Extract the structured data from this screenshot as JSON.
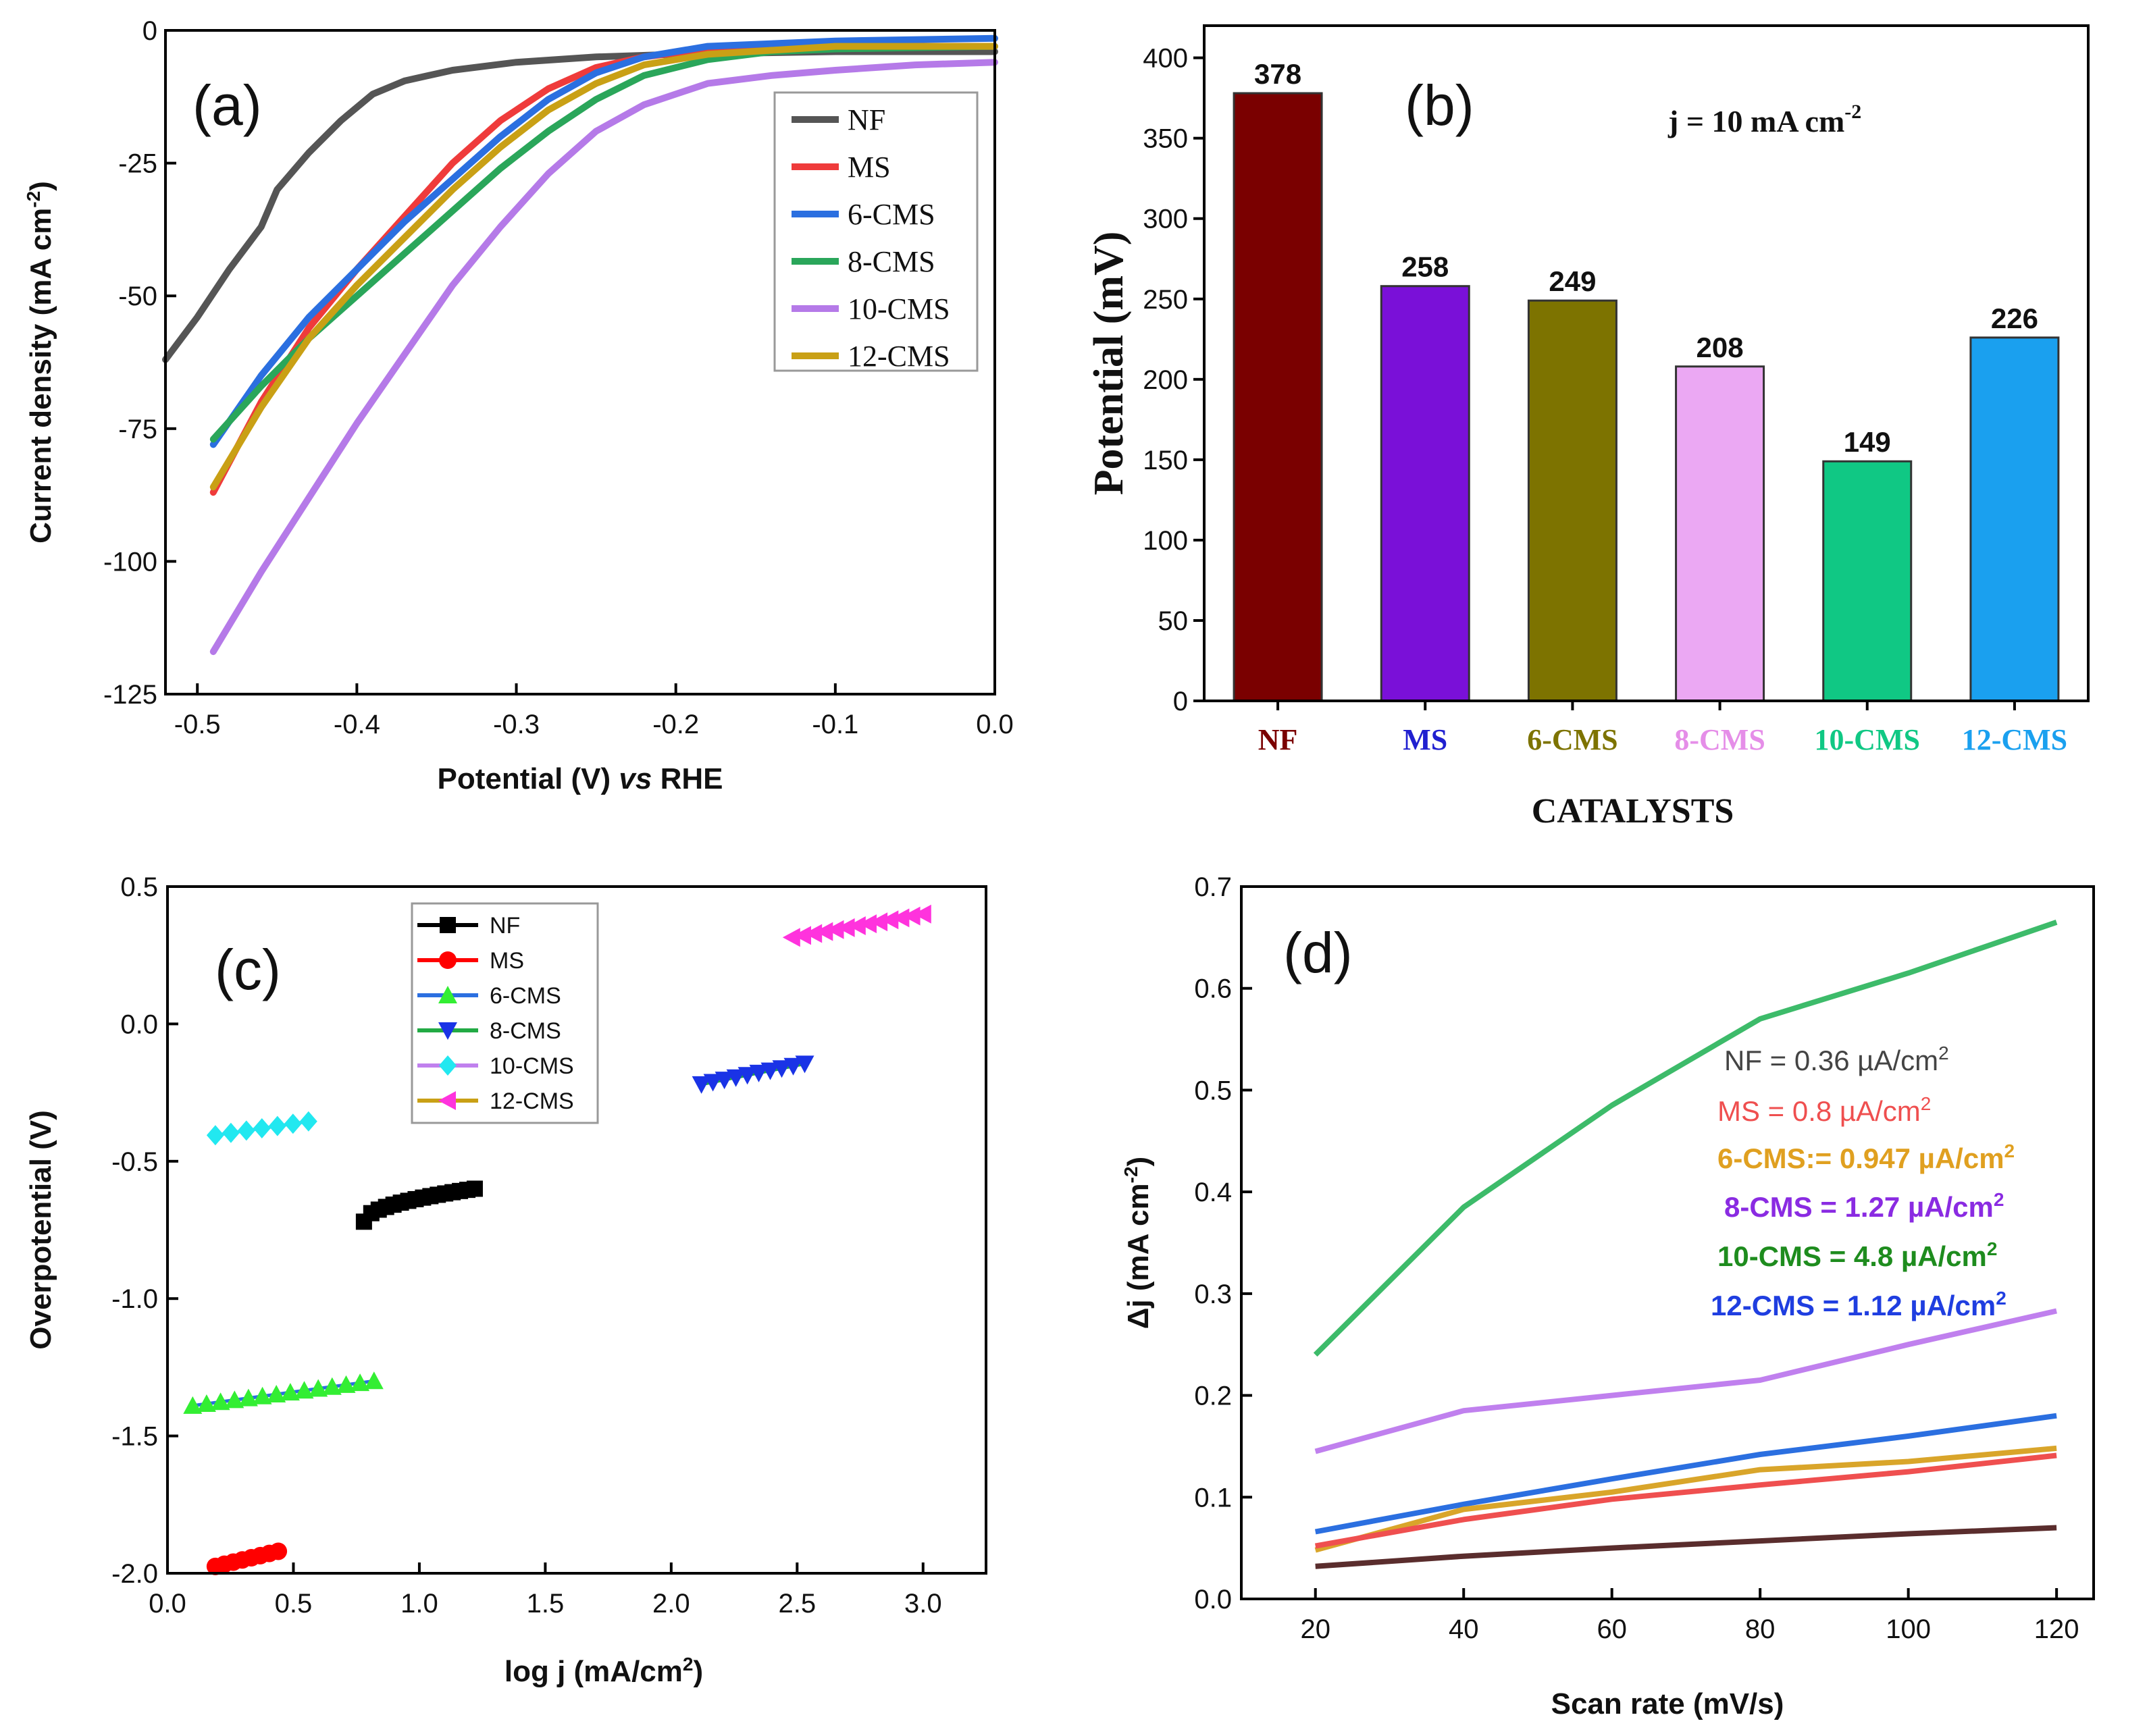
{
  "chart_data": [
    {
      "panel": "(a)",
      "type": "line",
      "xlabel_main": "Potential (V) ",
      "xlabel_italic": "vs",
      "xlabel_tail": " RHE",
      "ylabel": "Current density (mA cm",
      "ylabel_sup": "-2",
      "ylabel_close": ")",
      "xlim": [
        -0.52,
        0.0
      ],
      "ylim": [
        -125,
        0
      ],
      "xticks": [
        -0.5,
        -0.4,
        -0.3,
        -0.2,
        -0.1,
        0.0
      ],
      "xtick_labels": [
        "-0.5",
        "-0.4",
        "-0.3",
        "-0.2",
        "-0.1",
        "0.0"
      ],
      "yticks": [
        0,
        -25,
        -50,
        -75,
        -100,
        -125
      ],
      "ytick_labels": [
        "0",
        "-25",
        "-50",
        "-75",
        "-100",
        "-125"
      ],
      "legend": "top-right",
      "series": [
        {
          "name": "NF",
          "color": "#555555",
          "points": [
            [
              -0.52,
              -62
            ],
            [
              -0.5,
              -54
            ],
            [
              -0.48,
              -45
            ],
            [
              -0.46,
              -37
            ],
            [
              -0.45,
              -30
            ],
            [
              -0.43,
              -23
            ],
            [
              -0.41,
              -17
            ],
            [
              -0.39,
              -12
            ],
            [
              -0.37,
              -9.5
            ],
            [
              -0.34,
              -7.5
            ],
            [
              -0.3,
              -6
            ],
            [
              -0.25,
              -5
            ],
            [
              -0.2,
              -4.5
            ],
            [
              -0.1,
              -4
            ],
            [
              0.0,
              -4
            ]
          ]
        },
        {
          "name": "MS",
          "color": "#ef3b3b",
          "points": [
            [
              -0.49,
              -87
            ],
            [
              -0.46,
              -70
            ],
            [
              -0.43,
              -56
            ],
            [
              -0.4,
              -45
            ],
            [
              -0.37,
              -35
            ],
            [
              -0.34,
              -25
            ],
            [
              -0.31,
              -17
            ],
            [
              -0.28,
              -11
            ],
            [
              -0.25,
              -7
            ],
            [
              -0.22,
              -5
            ],
            [
              -0.18,
              -3.5
            ],
            [
              -0.1,
              -3
            ],
            [
              0.0,
              -3
            ]
          ]
        },
        {
          "name": "6-CMS",
          "color": "#2b6fe0",
          "points": [
            [
              -0.49,
              -78
            ],
            [
              -0.46,
              -65
            ],
            [
              -0.43,
              -54
            ],
            [
              -0.4,
              -45
            ],
            [
              -0.37,
              -36
            ],
            [
              -0.34,
              -28
            ],
            [
              -0.31,
              -20
            ],
            [
              -0.28,
              -13
            ],
            [
              -0.25,
              -8
            ],
            [
              -0.22,
              -5
            ],
            [
              -0.18,
              -3
            ],
            [
              -0.1,
              -2
            ],
            [
              0.0,
              -1.5
            ]
          ]
        },
        {
          "name": "8-CMS",
          "color": "#2aa65a",
          "points": [
            [
              -0.49,
              -77
            ],
            [
              -0.46,
              -67
            ],
            [
              -0.43,
              -58
            ],
            [
              -0.4,
              -50
            ],
            [
              -0.37,
              -42
            ],
            [
              -0.34,
              -34
            ],
            [
              -0.31,
              -26
            ],
            [
              -0.28,
              -19
            ],
            [
              -0.25,
              -13
            ],
            [
              -0.22,
              -8.5
            ],
            [
              -0.18,
              -5.5
            ],
            [
              -0.14,
              -4
            ],
            [
              -0.1,
              -3.5
            ],
            [
              0.0,
              -3
            ]
          ]
        },
        {
          "name": "10-CMS",
          "color": "#b57ae8",
          "points": [
            [
              -0.49,
              -117
            ],
            [
              -0.46,
              -102
            ],
            [
              -0.43,
              -88
            ],
            [
              -0.4,
              -74
            ],
            [
              -0.37,
              -61
            ],
            [
              -0.34,
              -48
            ],
            [
              -0.31,
              -37
            ],
            [
              -0.28,
              -27
            ],
            [
              -0.25,
              -19
            ],
            [
              -0.22,
              -14
            ],
            [
              -0.18,
              -10
            ],
            [
              -0.14,
              -8.5
            ],
            [
              -0.1,
              -7.5
            ],
            [
              -0.05,
              -6.5
            ],
            [
              0.0,
              -6
            ]
          ]
        },
        {
          "name": "12-CMS",
          "color": "#c9a015",
          "points": [
            [
              -0.49,
              -86
            ],
            [
              -0.46,
              -71
            ],
            [
              -0.43,
              -58
            ],
            [
              -0.4,
              -48
            ],
            [
              -0.37,
              -39
            ],
            [
              -0.34,
              -30
            ],
            [
              -0.31,
              -22
            ],
            [
              -0.28,
              -15
            ],
            [
              -0.25,
              -10
            ],
            [
              -0.22,
              -6.5
            ],
            [
              -0.18,
              -4.5
            ],
            [
              -0.1,
              -3
            ],
            [
              0.0,
              -3
            ]
          ]
        }
      ]
    },
    {
      "panel": "(b)",
      "type": "bar",
      "title": "j = 10 mA cm",
      "title_sup": "-2",
      "xlabel": "CATALYSTS",
      "ylabel": "Potential (mV)",
      "ylim": [
        0,
        420
      ],
      "yticks": [
        0,
        50,
        100,
        150,
        200,
        250,
        300,
        350,
        400
      ],
      "ytick_labels": [
        "0",
        "50",
        "100",
        "150",
        "200",
        "250",
        "300",
        "350",
        "400"
      ],
      "categories": [
        "NF",
        "MS",
        "6-CMS",
        "8-CMS",
        "10-CMS",
        "12-CMS"
      ],
      "values": [
        378,
        258,
        249,
        208,
        149,
        226
      ],
      "value_labels": [
        "378",
        "258",
        "249",
        "208",
        "149",
        "226"
      ],
      "bar_colors": [
        "#7a0000",
        "#7a10d8",
        "#7d7300",
        "#eba8f3",
        "#10c884",
        "#1aa0ef"
      ],
      "label_colors": [
        "#7a0000",
        "#2020d0",
        "#7d7300",
        "#e58ee8",
        "#10c884",
        "#1aa0ef"
      ]
    },
    {
      "panel": "(c)",
      "type": "scatter",
      "xlabel": "log j (mA/cm",
      "xlabel_sup": "2",
      "xlabel_close": ")",
      "ylabel": "Overpotential (V)",
      "xlim": [
        0.0,
        3.25
      ],
      "ylim": [
        -2.0,
        0.5
      ],
      "xticks": [
        0.0,
        0.5,
        1.0,
        1.5,
        2.0,
        2.5,
        3.0
      ],
      "xtick_labels": [
        "0.0",
        "0.5",
        "1.0",
        "1.5",
        "2.0",
        "2.5",
        "3.0"
      ],
      "yticks": [
        0.5,
        0.0,
        -0.5,
        -1.0,
        -1.5,
        -2.0
      ],
      "ytick_labels": [
        "0.5",
        "0.0",
        "-0.5",
        "-1.0",
        "-1.5",
        "-2.0"
      ],
      "legend": "top-center",
      "series": [
        {
          "name": "NF",
          "line_color": "#000000",
          "marker_color": "#000000",
          "marker": "square",
          "x_start": 0.78,
          "x_end": 1.22,
          "y_start": -0.72,
          "y_end": -0.6,
          "n": 16,
          "curve": true
        },
        {
          "name": "MS",
          "line_color": "#ff0000",
          "marker_color": "#ff0000",
          "marker": "circle",
          "x_start": 0.19,
          "x_end": 0.44,
          "y_start": -1.975,
          "y_end": -1.92,
          "n": 8,
          "curve": false
        },
        {
          "name": "6-CMS",
          "line_color": "#2b6fe0",
          "marker_color": "#33ee33",
          "marker": "triangle-up",
          "x_start": 0.1,
          "x_end": 0.82,
          "y_start": -1.39,
          "y_end": -1.3,
          "n": 14,
          "curve": false
        },
        {
          "name": "8-CMS",
          "line_color": "#22aa44",
          "marker_color": "#1a33e6",
          "marker": "triangle-down",
          "x_start": 2.12,
          "x_end": 2.53,
          "y_start": -0.22,
          "y_end": -0.145,
          "n": 10,
          "curve": false
        },
        {
          "name": "10-CMS",
          "line_color": "#c080ee",
          "marker_color": "#22e8f0",
          "marker": "diamond",
          "x_start": 0.19,
          "x_end": 0.56,
          "y_start": -0.405,
          "y_end": -0.355,
          "n": 7,
          "curve": false
        },
        {
          "name": "12-CMS",
          "line_color": "#c9a015",
          "marker_color": "#ff33dd",
          "marker": "triangle-left",
          "x_start": 2.48,
          "x_end": 3.0,
          "y_start": 0.315,
          "y_end": 0.4,
          "n": 13,
          "curve": false
        }
      ]
    },
    {
      "panel": "(d)",
      "type": "line",
      "xlabel": "Scan rate (mV/s)",
      "ylabel": "Δj (mA cm",
      "ylabel_sup": "-2",
      "ylabel_close": ")",
      "xlim": [
        10,
        125
      ],
      "ylim": [
        0.0,
        0.7
      ],
      "xticks": [
        20,
        40,
        60,
        80,
        100,
        120
      ],
      "xtick_labels": [
        "20",
        "40",
        "60",
        "80",
        "100",
        "120"
      ],
      "yticks": [
        0.0,
        0.1,
        0.2,
        0.3,
        0.4,
        0.5,
        0.6,
        0.7
      ],
      "ytick_labels": [
        "0.0",
        "0.1",
        "0.2",
        "0.3",
        "0.4",
        "0.5",
        "0.6",
        "0.7"
      ],
      "annotations": [
        {
          "text": "NF = 0.36 µA/cm",
          "sup": "2",
          "color": "#444444",
          "bold": false
        },
        {
          "text": "MS = 0.8 µA/cm",
          "sup": "2",
          "color": "#ef4f4f",
          "bold": false
        },
        {
          "text": "6-CMS:= 0.947 µA/cm",
          "sup": "2",
          "color": "#e0a020",
          "bold": true
        },
        {
          "text": "8-CMS = 1.27 µA/cm",
          "sup": "2",
          "color": "#8a2be2",
          "bold": true
        },
        {
          "text": "10-CMS = 4.8 µA/cm",
          "sup": "2",
          "color": "#1e8c1e",
          "bold": true
        },
        {
          "text": "12-CMS = 1.12 µA/cm",
          "sup": "2",
          "color": "#1f3ee0",
          "bold": true
        }
      ],
      "series": [
        {
          "name": "10-CMS",
          "color": "#3dbb6a",
          "x": [
            20,
            40,
            60,
            80,
            100,
            120
          ],
          "y": [
            0.24,
            0.385,
            0.485,
            0.57,
            0.615,
            0.665
          ]
        },
        {
          "name": "8-CMS",
          "color": "#c080ee",
          "x": [
            20,
            40,
            60,
            80,
            100,
            120
          ],
          "y": [
            0.145,
            0.185,
            0.2,
            0.215,
            0.25,
            0.283
          ]
        },
        {
          "name": "12-CMS",
          "color": "#2b6fe0",
          "x": [
            20,
            40,
            60,
            80,
            100,
            120
          ],
          "y": [
            0.066,
            0.093,
            0.118,
            0.142,
            0.16,
            0.18
          ]
        },
        {
          "name": "6-CMS",
          "color": "#d9a52a",
          "x": [
            20,
            40,
            60,
            80,
            100,
            120
          ],
          "y": [
            0.048,
            0.088,
            0.105,
            0.127,
            0.135,
            0.148
          ]
        },
        {
          "name": "MS",
          "color": "#ef4f4f",
          "x": [
            20,
            40,
            60,
            80,
            100,
            120
          ],
          "y": [
            0.052,
            0.078,
            0.098,
            0.112,
            0.125,
            0.141
          ]
        },
        {
          "name": "NF",
          "color": "#5a2d2d",
          "x": [
            20,
            40,
            60,
            80,
            100,
            120
          ],
          "y": [
            0.032,
            0.042,
            0.05,
            0.057,
            0.064,
            0.07
          ]
        }
      ]
    }
  ]
}
